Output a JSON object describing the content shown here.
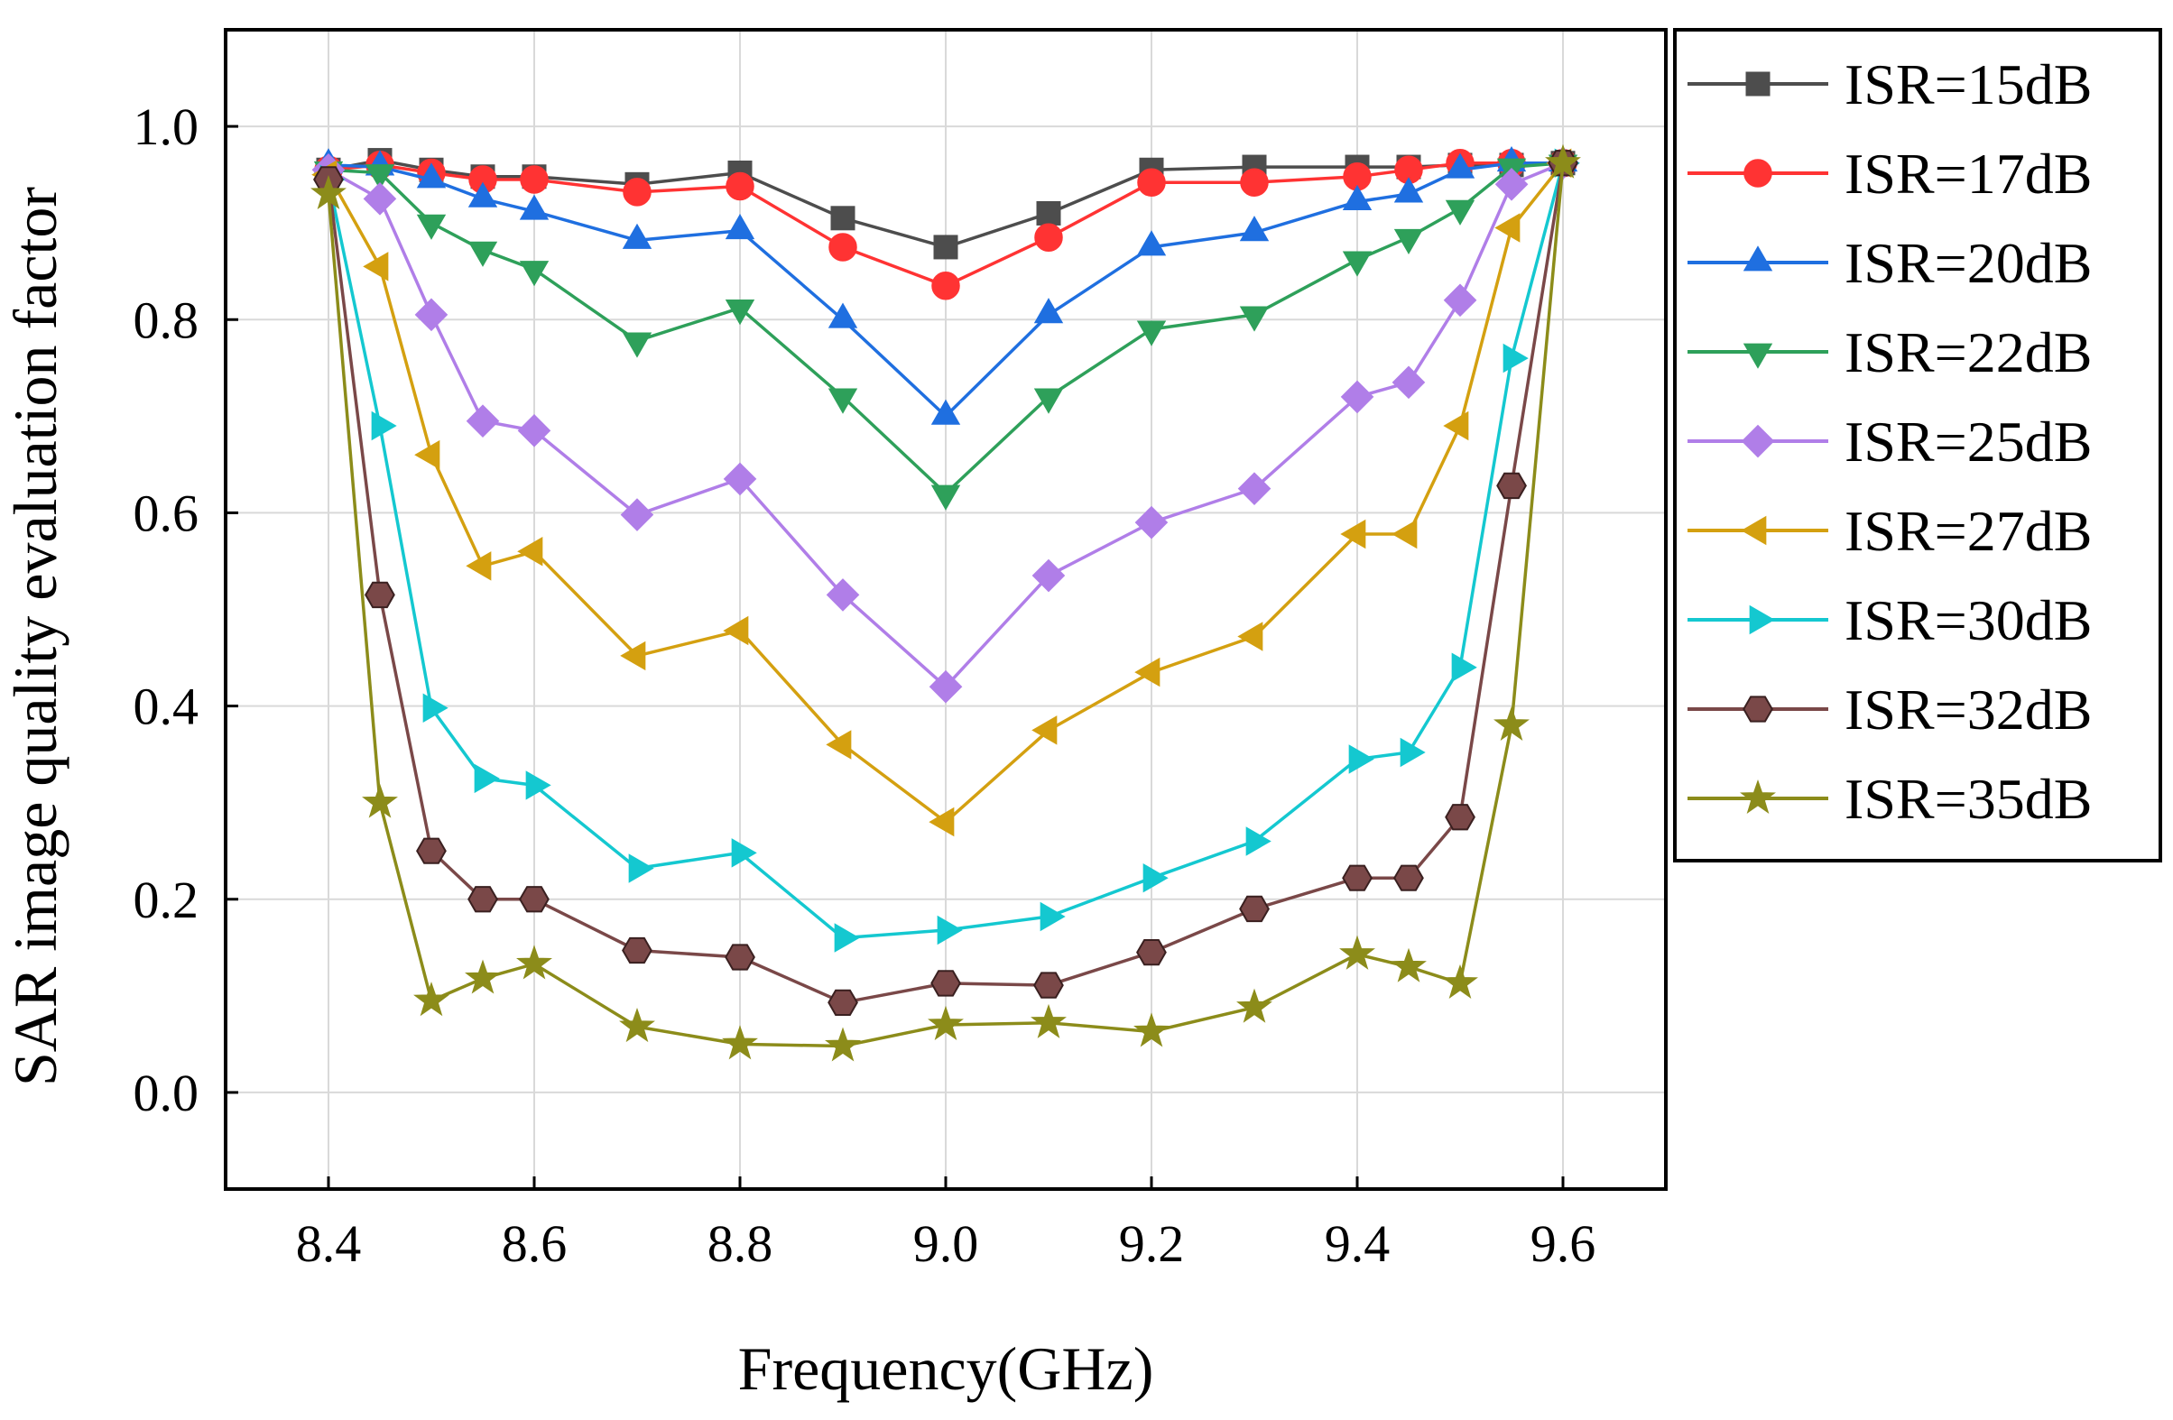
{
  "chart_data": {
    "type": "line",
    "title": "",
    "xlabel": "Frequency(GHz)",
    "ylabel": "SAR image quality evaluation factor",
    "xlim": [
      8.3,
      9.7
    ],
    "ylim": [
      -0.1,
      1.1
    ],
    "xticks": [
      8.4,
      8.6,
      8.8,
      9.0,
      9.2,
      9.4,
      9.6
    ],
    "yticks": [
      0.0,
      0.2,
      0.4,
      0.6,
      0.8,
      1.0
    ],
    "xtick_labels": [
      "8.4",
      "8.6",
      "8.8",
      "9.0",
      "9.2",
      "9.4",
      "9.6"
    ],
    "ytick_labels": [
      "0.0",
      "0.2",
      "0.4",
      "0.6",
      "0.8",
      "1.0"
    ],
    "grid": true,
    "legend_position": "right-outside-top",
    "x": [
      8.4,
      8.45,
      8.5,
      8.55,
      8.6,
      8.7,
      8.8,
      8.9,
      9.0,
      9.1,
      9.2,
      9.3,
      9.4,
      9.45,
      9.5,
      9.55,
      9.6
    ],
    "series": [
      {
        "name": "ISR=15dB",
        "color": "#4d4d4d",
        "marker": "square",
        "values": [
          0.955,
          0.965,
          0.955,
          0.948,
          0.948,
          0.94,
          0.952,
          0.905,
          0.875,
          0.91,
          0.955,
          0.958,
          0.958,
          0.958,
          0.96,
          0.96,
          0.962
        ]
      },
      {
        "name": "ISR=17dB",
        "color": "#ff3333",
        "marker": "circle",
        "values": [
          0.955,
          0.96,
          0.952,
          0.945,
          0.945,
          0.932,
          0.938,
          0.875,
          0.835,
          0.885,
          0.942,
          0.942,
          0.948,
          0.955,
          0.962,
          0.962,
          0.962
        ]
      },
      {
        "name": "ISR=20dB",
        "color": "#1f6fe0",
        "marker": "triangle-up",
        "values": [
          0.96,
          0.958,
          0.945,
          0.925,
          0.912,
          0.882,
          0.892,
          0.8,
          0.7,
          0.805,
          0.875,
          0.89,
          0.922,
          0.93,
          0.955,
          0.962,
          0.962
        ]
      },
      {
        "name": "ISR=22dB",
        "color": "#2ea05a",
        "marker": "triangle-down",
        "values": [
          0.955,
          0.952,
          0.9,
          0.872,
          0.852,
          0.778,
          0.812,
          0.72,
          0.62,
          0.72,
          0.79,
          0.805,
          0.862,
          0.885,
          0.915,
          0.958,
          0.962
        ]
      },
      {
        "name": "ISR=25dB",
        "color": "#b07ee8",
        "marker": "diamond",
        "values": [
          0.955,
          0.925,
          0.805,
          0.695,
          0.685,
          0.598,
          0.635,
          0.515,
          0.42,
          0.535,
          0.59,
          0.625,
          0.72,
          0.735,
          0.82,
          0.94,
          0.962
        ]
      },
      {
        "name": "ISR=27dB",
        "color": "#d4a010",
        "marker": "triangle-left",
        "values": [
          0.95,
          0.855,
          0.66,
          0.545,
          0.56,
          0.452,
          0.478,
          0.36,
          0.28,
          0.375,
          0.435,
          0.472,
          0.578,
          0.578,
          0.69,
          0.895,
          0.962
        ]
      },
      {
        "name": "ISR=30dB",
        "color": "#14c8d0",
        "marker": "triangle-right",
        "values": [
          0.945,
          0.69,
          0.398,
          0.325,
          0.318,
          0.232,
          0.248,
          0.16,
          0.168,
          0.182,
          0.222,
          0.26,
          0.345,
          0.352,
          0.44,
          0.76,
          0.962
        ]
      },
      {
        "name": "ISR=32dB",
        "color": "#7a4848",
        "marker": "hexagon",
        "values": [
          0.945,
          0.515,
          0.25,
          0.2,
          0.2,
          0.147,
          0.14,
          0.093,
          0.113,
          0.111,
          0.145,
          0.19,
          0.222,
          0.222,
          0.285,
          0.628,
          0.962
        ]
      },
      {
        "name": "ISR=35dB",
        "color": "#8c8c1a",
        "marker": "star",
        "values": [
          0.93,
          0.3,
          0.095,
          0.118,
          0.133,
          0.068,
          0.05,
          0.048,
          0.07,
          0.072,
          0.063,
          0.088,
          0.143,
          0.13,
          0.113,
          0.38,
          0.962
        ]
      }
    ]
  }
}
